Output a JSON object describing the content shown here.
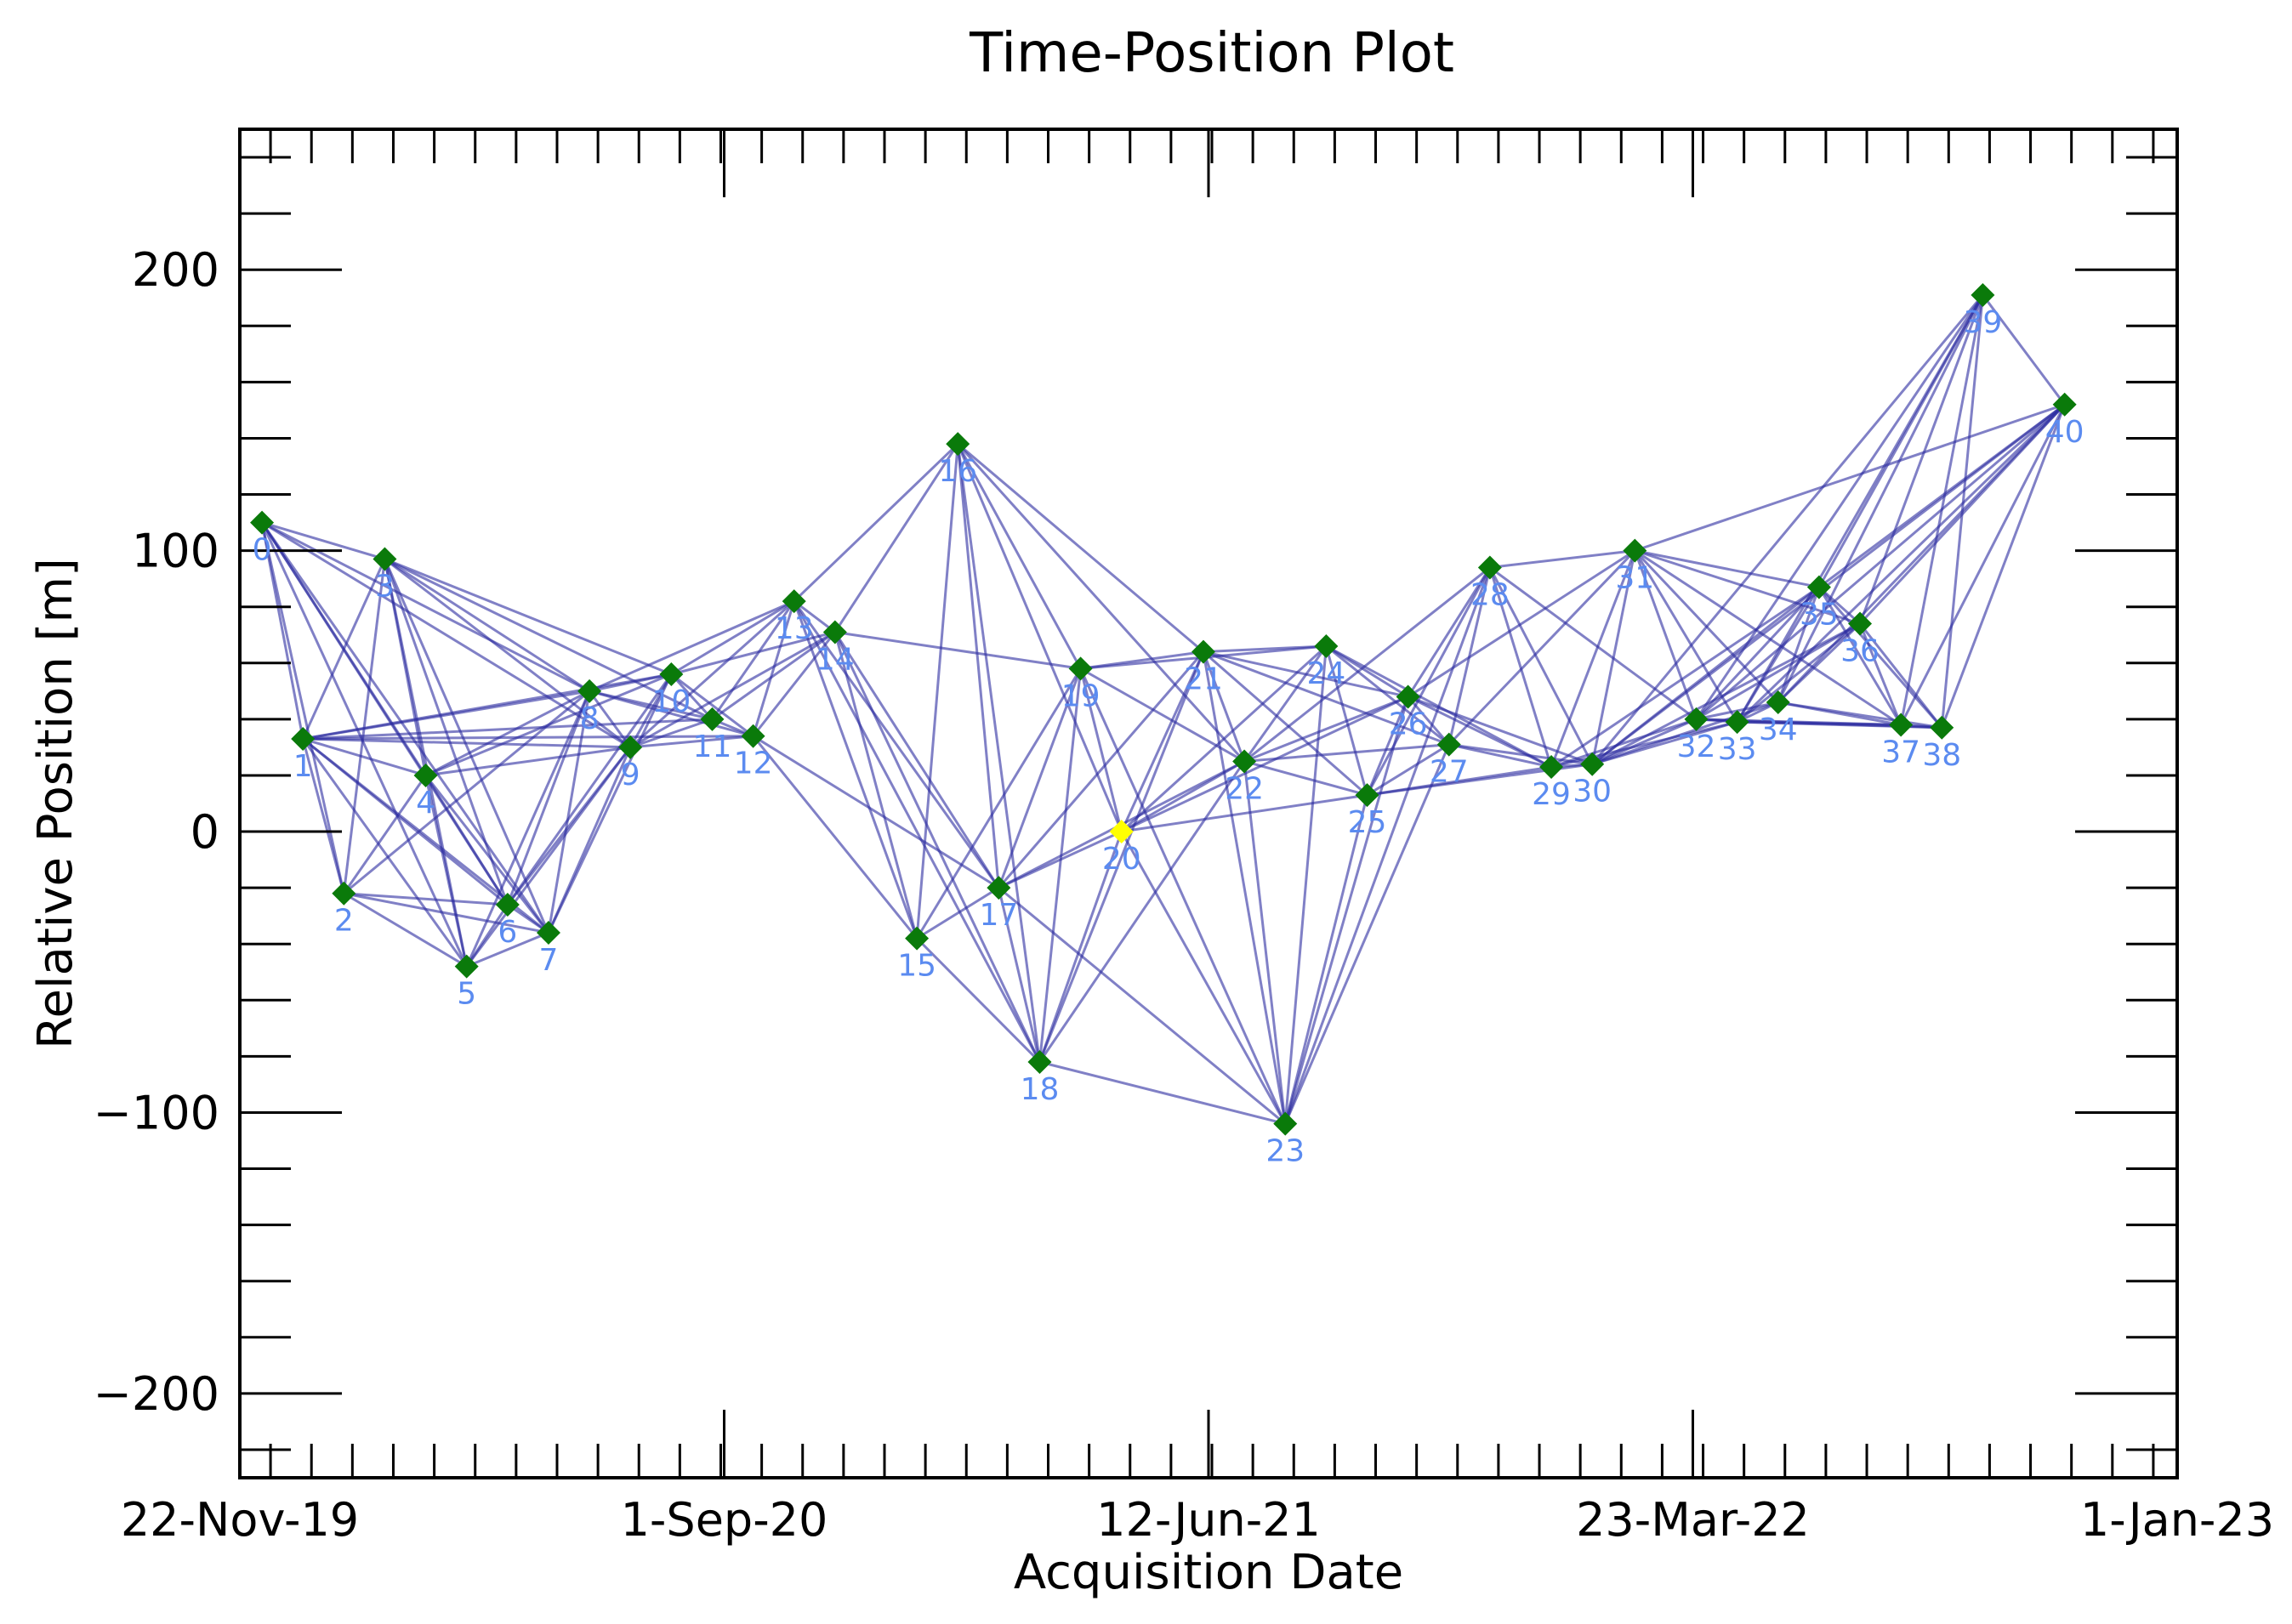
{
  "chart_data": {
    "type": "scatter",
    "title": "Time-Position Plot",
    "xlabel": "Acquisition Date",
    "ylabel": "Relative Position [m]",
    "xlim": [
      "2019-11-22",
      "2023-01-01"
    ],
    "ylim": [
      -230,
      250
    ],
    "x_ticks": [
      {
        "date": "2019-11-22",
        "label": "22-Nov-19"
      },
      {
        "date": "2020-09-01",
        "label": "1-Sep-20"
      },
      {
        "date": "2021-06-12",
        "label": "12-Jun-21"
      },
      {
        "date": "2022-03-23",
        "label": "23-Mar-22"
      },
      {
        "date": "2023-01-01",
        "label": "1-Jan-23"
      }
    ],
    "y_ticks": [
      {
        "value": 200,
        "label": "200"
      },
      {
        "value": 100,
        "label": "100"
      },
      {
        "value": 0,
        "label": "0"
      },
      {
        "value": -100,
        "label": "−100"
      },
      {
        "value": -200,
        "label": "−200"
      }
    ],
    "minor_x_dates": [
      "2019-12-10",
      "2020-01-03",
      "2020-01-27",
      "2020-02-20",
      "2020-03-15",
      "2020-04-08",
      "2020-05-02",
      "2020-05-26",
      "2020-06-19",
      "2020-07-13",
      "2020-08-06",
      "2020-08-30",
      "2020-09-23",
      "2020-10-17",
      "2020-11-10",
      "2020-12-04",
      "2020-12-28",
      "2021-01-21",
      "2021-02-14",
      "2021-03-10",
      "2021-04-03",
      "2021-04-27",
      "2021-05-21",
      "2021-06-14",
      "2021-07-08",
      "2021-08-01",
      "2021-08-25",
      "2021-09-18",
      "2021-10-12",
      "2021-11-05",
      "2021-11-29",
      "2021-12-23",
      "2022-01-16",
      "2022-02-09",
      "2022-03-05",
      "2022-03-29",
      "2022-04-22",
      "2022-05-16",
      "2022-06-09",
      "2022-07-03",
      "2022-07-27",
      "2022-08-20",
      "2022-09-13",
      "2022-10-07",
      "2022-10-31",
      "2022-11-24",
      "2022-12-18"
    ],
    "reference_index": 20,
    "marker_color": "#0a7a0a",
    "reference_color": "#ffff00",
    "edge_color": "#2b2ba0",
    "label_color": "#5b8bf0",
    "points": [
      {
        "id": "0",
        "date": "2019-12-05",
        "y": 110
      },
      {
        "id": "1",
        "date": "2019-12-29",
        "y": 33
      },
      {
        "id": "2",
        "date": "2020-01-22",
        "y": -22
      },
      {
        "id": "3",
        "date": "2020-02-15",
        "y": 97
      },
      {
        "id": "4",
        "date": "2020-03-10",
        "y": 20
      },
      {
        "id": "5",
        "date": "2020-04-03",
        "y": -48
      },
      {
        "id": "6",
        "date": "2020-04-27",
        "y": -26
      },
      {
        "id": "7",
        "date": "2020-05-21",
        "y": -36
      },
      {
        "id": "8",
        "date": "2020-06-14",
        "y": 50
      },
      {
        "id": "9",
        "date": "2020-07-08",
        "y": 30
      },
      {
        "id": "10",
        "date": "2020-08-01",
        "y": 56
      },
      {
        "id": "11",
        "date": "2020-08-25",
        "y": 40
      },
      {
        "id": "12",
        "date": "2020-09-18",
        "y": 34
      },
      {
        "id": "13",
        "date": "2020-10-12",
        "y": 82
      },
      {
        "id": "14",
        "date": "2020-11-05",
        "y": 71
      },
      {
        "id": "15",
        "date": "2020-12-23",
        "y": -38
      },
      {
        "id": "16",
        "date": "2021-01-16",
        "y": 138
      },
      {
        "id": "17",
        "date": "2021-02-09",
        "y": -20
      },
      {
        "id": "18",
        "date": "2021-03-05",
        "y": -82
      },
      {
        "id": "19",
        "date": "2021-03-29",
        "y": 58
      },
      {
        "id": "20",
        "date": "2021-04-22",
        "y": 0
      },
      {
        "id": "21",
        "date": "2021-06-09",
        "y": 64
      },
      {
        "id": "22",
        "date": "2021-07-03",
        "y": 25
      },
      {
        "id": "23",
        "date": "2021-07-27",
        "y": -104
      },
      {
        "id": "24",
        "date": "2021-08-20",
        "y": 66
      },
      {
        "id": "25",
        "date": "2021-09-13",
        "y": 13
      },
      {
        "id": "26",
        "date": "2021-10-07",
        "y": 48
      },
      {
        "id": "27",
        "date": "2021-10-31",
        "y": 31
      },
      {
        "id": "28",
        "date": "2021-11-24",
        "y": 94
      },
      {
        "id": "29",
        "date": "2021-12-30",
        "y": 23
      },
      {
        "id": "30",
        "date": "2022-01-23",
        "y": 24
      },
      {
        "id": "31",
        "date": "2022-02-17",
        "y": 100
      },
      {
        "id": "32",
        "date": "2022-03-25",
        "y": 40
      },
      {
        "id": "33",
        "date": "2022-04-18",
        "y": 39
      },
      {
        "id": "34",
        "date": "2022-05-12",
        "y": 46
      },
      {
        "id": "35",
        "date": "2022-06-05",
        "y": 87
      },
      {
        "id": "36",
        "date": "2022-06-29",
        "y": 74
      },
      {
        "id": "37",
        "date": "2022-07-23",
        "y": 38
      },
      {
        "id": "38",
        "date": "2022-08-16",
        "y": 37
      },
      {
        "id": "39",
        "date": "2022-09-09",
        "y": 191
      },
      {
        "id": "40",
        "date": "2022-10-27",
        "y": 152
      }
    ],
    "edges": [
      [
        0,
        1
      ],
      [
        0,
        2
      ],
      [
        0,
        3
      ],
      [
        0,
        4
      ],
      [
        0,
        5
      ],
      [
        0,
        6
      ],
      [
        0,
        7
      ],
      [
        0,
        8
      ],
      [
        0,
        9
      ],
      [
        1,
        2
      ],
      [
        1,
        3
      ],
      [
        1,
        4
      ],
      [
        1,
        5
      ],
      [
        1,
        6
      ],
      [
        1,
        7
      ],
      [
        1,
        8
      ],
      [
        1,
        9
      ],
      [
        1,
        10
      ],
      [
        1,
        11
      ],
      [
        1,
        12
      ],
      [
        2,
        3
      ],
      [
        2,
        4
      ],
      [
        2,
        5
      ],
      [
        2,
        6
      ],
      [
        2,
        7
      ],
      [
        2,
        8
      ],
      [
        3,
        4
      ],
      [
        3,
        5
      ],
      [
        3,
        6
      ],
      [
        3,
        7
      ],
      [
        3,
        8
      ],
      [
        3,
        9
      ],
      [
        3,
        10
      ],
      [
        3,
        11
      ],
      [
        4,
        5
      ],
      [
        4,
        6
      ],
      [
        4,
        7
      ],
      [
        4,
        8
      ],
      [
        4,
        9
      ],
      [
        4,
        10
      ],
      [
        5,
        6
      ],
      [
        5,
        7
      ],
      [
        5,
        8
      ],
      [
        5,
        9
      ],
      [
        6,
        7
      ],
      [
        6,
        8
      ],
      [
        6,
        9
      ],
      [
        6,
        10
      ],
      [
        7,
        8
      ],
      [
        7,
        9
      ],
      [
        7,
        10
      ],
      [
        8,
        9
      ],
      [
        8,
        10
      ],
      [
        8,
        11
      ],
      [
        8,
        12
      ],
      [
        8,
        13
      ],
      [
        9,
        10
      ],
      [
        9,
        11
      ],
      [
        9,
        12
      ],
      [
        9,
        13
      ],
      [
        9,
        14
      ],
      [
        10,
        11
      ],
      [
        10,
        12
      ],
      [
        10,
        13
      ],
      [
        10,
        14
      ],
      [
        11,
        12
      ],
      [
        11,
        13
      ],
      [
        11,
        14
      ],
      [
        12,
        13
      ],
      [
        12,
        14
      ],
      [
        12,
        15
      ],
      [
        12,
        17
      ],
      [
        13,
        14
      ],
      [
        13,
        15
      ],
      [
        13,
        16
      ],
      [
        13,
        17
      ],
      [
        13,
        18
      ],
      [
        14,
        15
      ],
      [
        14,
        16
      ],
      [
        14,
        17
      ],
      [
        14,
        18
      ],
      [
        14,
        19
      ],
      [
        15,
        16
      ],
      [
        15,
        17
      ],
      [
        15,
        18
      ],
      [
        15,
        19
      ],
      [
        16,
        17
      ],
      [
        16,
        18
      ],
      [
        16,
        19
      ],
      [
        16,
        20
      ],
      [
        16,
        21
      ],
      [
        16,
        22
      ],
      [
        17,
        18
      ],
      [
        17,
        19
      ],
      [
        17,
        20
      ],
      [
        17,
        21
      ],
      [
        17,
        22
      ],
      [
        17,
        23
      ],
      [
        18,
        19
      ],
      [
        18,
        20
      ],
      [
        18,
        21
      ],
      [
        18,
        22
      ],
      [
        18,
        23
      ],
      [
        19,
        20
      ],
      [
        19,
        21
      ],
      [
        19,
        22
      ],
      [
        19,
        23
      ],
      [
        19,
        24
      ],
      [
        20,
        21
      ],
      [
        20,
        22
      ],
      [
        20,
        23
      ],
      [
        20,
        24
      ],
      [
        20,
        25
      ],
      [
        20,
        26
      ],
      [
        21,
        22
      ],
      [
        21,
        23
      ],
      [
        21,
        24
      ],
      [
        21,
        25
      ],
      [
        21,
        26
      ],
      [
        21,
        27
      ],
      [
        22,
        23
      ],
      [
        22,
        24
      ],
      [
        22,
        25
      ],
      [
        22,
        26
      ],
      [
        22,
        27
      ],
      [
        22,
        28
      ],
      [
        23,
        24
      ],
      [
        23,
        25
      ],
      [
        23,
        26
      ],
      [
        23,
        27
      ],
      [
        23,
        28
      ],
      [
        24,
        25
      ],
      [
        24,
        26
      ],
      [
        24,
        27
      ],
      [
        24,
        29
      ],
      [
        25,
        26
      ],
      [
        25,
        27
      ],
      [
        25,
        28
      ],
      [
        25,
        29
      ],
      [
        25,
        30
      ],
      [
        26,
        27
      ],
      [
        26,
        28
      ],
      [
        26,
        29
      ],
      [
        26,
        30
      ],
      [
        26,
        31
      ],
      [
        27,
        28
      ],
      [
        27,
        29
      ],
      [
        27,
        30
      ],
      [
        27,
        31
      ],
      [
        28,
        29
      ],
      [
        28,
        30
      ],
      [
        28,
        31
      ],
      [
        28,
        32
      ],
      [
        29,
        30
      ],
      [
        29,
        31
      ],
      [
        29,
        32
      ],
      [
        29,
        33
      ],
      [
        29,
        35
      ],
      [
        30,
        31
      ],
      [
        30,
        32
      ],
      [
        30,
        33
      ],
      [
        30,
        34
      ],
      [
        30,
        35
      ],
      [
        30,
        36
      ],
      [
        30,
        39
      ],
      [
        30,
        40
      ],
      [
        31,
        32
      ],
      [
        31,
        33
      ],
      [
        31,
        34
      ],
      [
        31,
        35
      ],
      [
        31,
        36
      ],
      [
        31,
        37
      ],
      [
        31,
        40
      ],
      [
        32,
        33
      ],
      [
        32,
        34
      ],
      [
        32,
        35
      ],
      [
        32,
        36
      ],
      [
        32,
        37
      ],
      [
        32,
        38
      ],
      [
        32,
        39
      ],
      [
        32,
        40
      ],
      [
        33,
        34
      ],
      [
        33,
        35
      ],
      [
        33,
        36
      ],
      [
        33,
        37
      ],
      [
        33,
        38
      ],
      [
        33,
        39
      ],
      [
        33,
        40
      ],
      [
        34,
        35
      ],
      [
        34,
        36
      ],
      [
        34,
        37
      ],
      [
        34,
        38
      ],
      [
        34,
        39
      ],
      [
        34,
        40
      ],
      [
        35,
        36
      ],
      [
        35,
        37
      ],
      [
        35,
        38
      ],
      [
        35,
        39
      ],
      [
        35,
        40
      ],
      [
        36,
        37
      ],
      [
        36,
        38
      ],
      [
        36,
        39
      ],
      [
        36,
        40
      ],
      [
        37,
        38
      ],
      [
        37,
        39
      ],
      [
        37,
        40
      ],
      [
        38,
        39
      ],
      [
        38,
        40
      ],
      [
        39,
        40
      ]
    ]
  }
}
